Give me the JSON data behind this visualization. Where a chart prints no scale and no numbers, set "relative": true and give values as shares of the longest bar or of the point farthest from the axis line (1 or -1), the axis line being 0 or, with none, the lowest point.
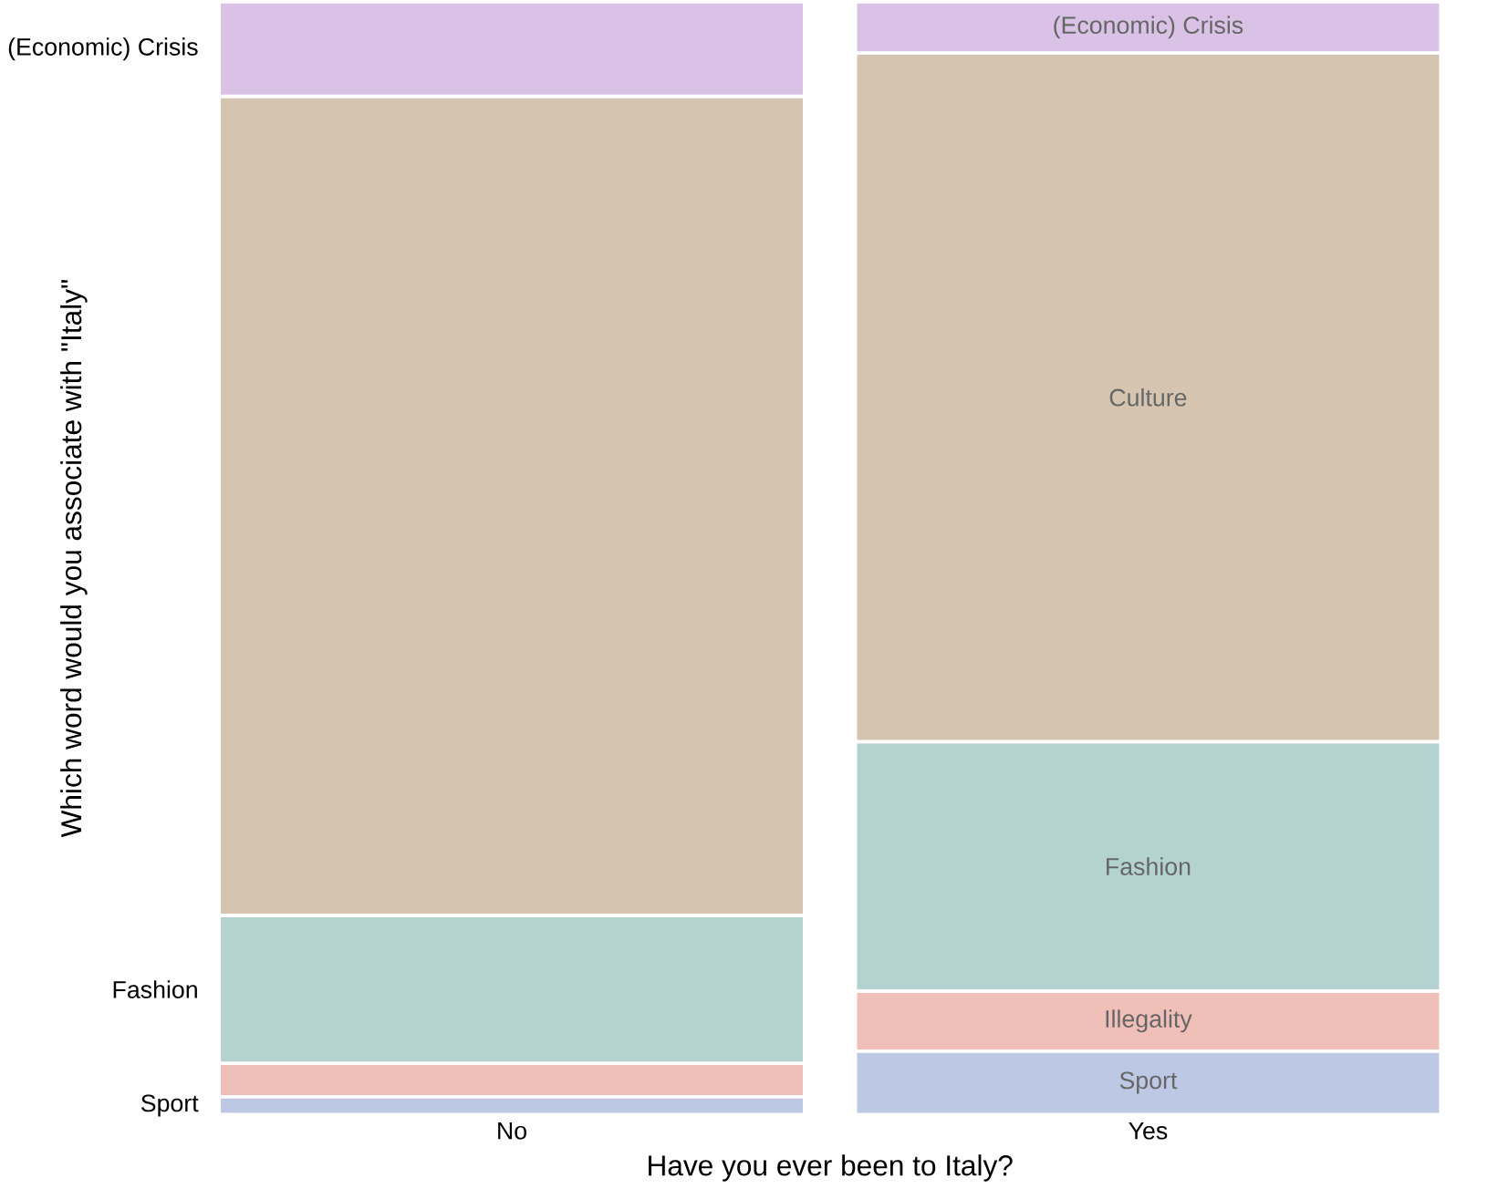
{
  "chart_data": {
    "type": "bar",
    "stacked": true,
    "relative": true,
    "xlabel": "Have you ever been to Italy?",
    "ylabel": "Which word would you associate with \"Italy\"",
    "categories": [
      "No",
      "Yes"
    ],
    "series": [
      {
        "name": "Sport",
        "color": "#bdc8e4",
        "values": [
          0.016,
          0.057
        ]
      },
      {
        "name": "Illegality",
        "color": "#f0bfb8",
        "values": [
          0.03,
          0.054
        ]
      },
      {
        "name": "Fashion",
        "color": "#b4d2d0",
        "values": [
          0.133,
          0.224
        ]
      },
      {
        "name": "Culture",
        "color": "#d4c4b0",
        "values": [
          0.736,
          0.619
        ]
      },
      {
        "name": "(Economic) Crisis",
        "color": "#d9c2e6",
        "values": [
          0.085,
          0.046
        ]
      }
    ],
    "annotations": [
      "(Economic) Crisis",
      "Fashion",
      "Sport"
    ]
  }
}
